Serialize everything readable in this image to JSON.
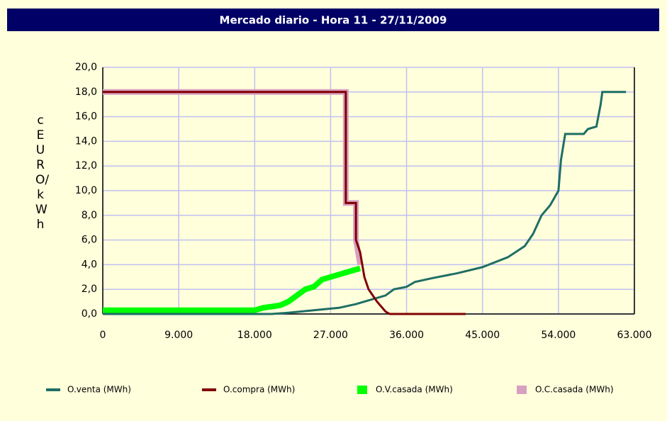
{
  "chart_data": {
    "type": "line",
    "title": "Mercado diario - Hora 11 - 27/11/2009",
    "y_label": "cEURO/kWh",
    "xlim": [
      0,
      63000
    ],
    "xticks": [
      0,
      {
        "value": 9000,
        "label": "9.000"
      },
      {
        "value": 18000,
        "label": "18.000"
      },
      {
        "value": 27000,
        "label": "27.000"
      },
      {
        "value": 36000,
        "label": "36.000"
      },
      {
        "value": 45000,
        "label": "45.000"
      },
      {
        "value": 54000,
        "label": "54.000"
      },
      {
        "value": 63000,
        "label": "63.000"
      }
    ],
    "ylim": [
      0,
      20
    ],
    "yticks": [
      {
        "value": 0,
        "label": "0,0"
      },
      {
        "value": 2,
        "label": "2,0"
      },
      {
        "value": 4,
        "label": "4,0"
      },
      {
        "value": 6,
        "label": "6,0"
      },
      {
        "value": 8,
        "label": "8,0"
      },
      {
        "value": 10,
        "label": "10,0"
      },
      {
        "value": 12,
        "label": "12,0"
      },
      {
        "value": 14,
        "label": "14,0"
      },
      {
        "value": 16,
        "label": "16,0"
      },
      {
        "value": 18,
        "label": "18,0"
      },
      {
        "value": 20,
        "label": "20,0"
      }
    ],
    "grid": true,
    "legend": "bottom",
    "series": [
      {
        "name": "O.venta (MWh)",
        "color": "#1e6e64",
        "width": 3,
        "x": [
          0,
          20000,
          22000,
          25000,
          28000,
          30000,
          32000,
          33500,
          34500,
          36000,
          37000,
          39000,
          42000,
          45000,
          48000,
          50000,
          51000,
          52000,
          53000,
          54000,
          54300,
          54800,
          57000,
          57500,
          58500,
          59000,
          59200,
          62000
        ],
        "values": [
          0,
          0,
          0.1,
          0.3,
          0.5,
          0.8,
          1.2,
          1.5,
          2.0,
          2.2,
          2.6,
          2.9,
          3.3,
          3.8,
          4.6,
          5.5,
          6.5,
          8.0,
          8.8,
          10.0,
          12.5,
          14.6,
          14.6,
          15.0,
          15.2,
          17.0,
          18.0,
          18.0
        ]
      },
      {
        "name": "O.compra (MWh)",
        "color": "#800000",
        "width": 3,
        "x": [
          0,
          28800,
          28800,
          30000,
          30000,
          30500,
          31000,
          31500,
          32500,
          33500,
          34000,
          43000
        ],
        "values": [
          18,
          18,
          9,
          9,
          6,
          5,
          3,
          2,
          1,
          0.2,
          0,
          0
        ]
      },
      {
        "name": "O.V.casada (MWh)",
        "color": "#00ff00",
        "width": 8,
        "x": [
          0,
          18000,
          19000,
          21000,
          22000,
          23000,
          24000,
          25000,
          26000,
          27000,
          28000,
          29000,
          30500
        ],
        "values": [
          0.3,
          0.3,
          0.5,
          0.7,
          1.0,
          1.5,
          2.0,
          2.2,
          2.8,
          3.0,
          3.2,
          3.4,
          3.7
        ]
      },
      {
        "name": "O.C.casada (MWh)",
        "color": "#d8a0c0",
        "width": 8,
        "x": [
          0,
          28800,
          28800,
          30000,
          30000,
          30500
        ],
        "values": [
          18,
          18,
          9,
          9,
          6,
          4
        ]
      }
    ]
  }
}
